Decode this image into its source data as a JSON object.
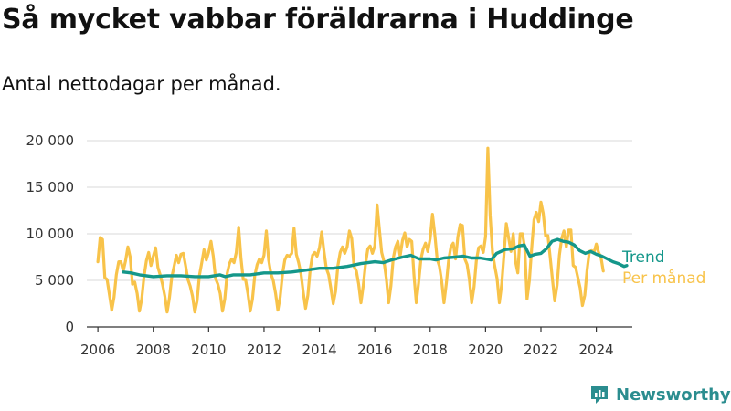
{
  "header": {
    "title": "Så mycket vabbar föräldrarna i Huddinge",
    "subtitle": "Antal nettodagar per månad."
  },
  "colors": {
    "monthly": "#f8c34a",
    "trend": "#14978a",
    "grid": "#d9d9d9",
    "axis": "#333333",
    "brand": "#2b8d8f"
  },
  "brand": {
    "name": "Newsworthy",
    "icon": "newsworthy-logo-icon"
  },
  "chart_data": {
    "type": "line",
    "title": "Så mycket vabbar föräldrarna i Huddinge",
    "subtitle": "Antal nettodagar per månad.",
    "xlabel": "",
    "ylabel": "",
    "xlim": [
      2005.6,
      2025.3
    ],
    "ylim": [
      0,
      20000
    ],
    "x_ticks": [
      2006,
      2008,
      2010,
      2012,
      2014,
      2016,
      2018,
      2020,
      2022,
      2024
    ],
    "y_ticks": [
      0,
      5000,
      10000,
      15000,
      20000
    ],
    "y_tick_labels": [
      "0",
      "5 000",
      "10 000",
      "15 000",
      "20 000"
    ],
    "grid": "horizontal",
    "legend": "direct labels at right end of lines",
    "series": [
      {
        "name": "Per månad",
        "color": "#f8c34a",
        "x_start": 2006.0,
        "x_step": 0.083333,
        "values": [
          7000,
          9600,
          9400,
          5300,
          5100,
          3500,
          1800,
          3200,
          5600,
          7000,
          7000,
          6000,
          7100,
          8600,
          7500,
          4600,
          4800,
          3600,
          1700,
          3000,
          5400,
          7100,
          8000,
          6600,
          7600,
          8500,
          6400,
          5600,
          4600,
          3300,
          1600,
          3100,
          5300,
          6500,
          7700,
          6900,
          7800,
          7900,
          6600,
          5100,
          4400,
          3300,
          1600,
          2800,
          5500,
          6900,
          8300,
          7200,
          8000,
          9200,
          7600,
          5200,
          4600,
          3600,
          1700,
          3000,
          5700,
          6800,
          7300,
          6900,
          8000,
          10700,
          7400,
          5100,
          5100,
          3600,
          1700,
          3000,
          5500,
          6700,
          7300,
          6900,
          7700,
          10300,
          7200,
          5700,
          5000,
          3600,
          1800,
          3200,
          5700,
          7200,
          7700,
          7600,
          7900,
          10600,
          7800,
          6900,
          5700,
          3700,
          2000,
          3400,
          6200,
          7700,
          8000,
          7600,
          8500,
          10200,
          8100,
          6300,
          5600,
          4100,
          2500,
          3800,
          6600,
          8000,
          8600,
          7900,
          8600,
          10300,
          9500,
          6500,
          6000,
          4600,
          2600,
          4400,
          6800,
          8400,
          8700,
          7900,
          8700,
          13100,
          10500,
          8000,
          7000,
          5200,
          2600,
          4400,
          7400,
          8600,
          9200,
          7600,
          9300,
          10100,
          8600,
          9400,
          9200,
          5500,
          2600,
          4700,
          7300,
          8400,
          9000,
          8100,
          9500,
          12100,
          10000,
          7300,
          6500,
          4900,
          2600,
          4700,
          7200,
          8600,
          9000,
          7300,
          9700,
          11000,
          10900,
          7300,
          6700,
          5100,
          2600,
          4300,
          7100,
          8500,
          8700,
          8000,
          9700,
          19200,
          12000,
          8000,
          6500,
          5200,
          2600,
          4600,
          7800,
          11100,
          9600,
          8100,
          10000,
          7000,
          5800,
          10000,
          10000,
          8500,
          3000,
          5000,
          8500,
          11500,
          12300,
          11300,
          13400,
          12200,
          9800,
          9800,
          7500,
          5100,
          2800,
          4500,
          7700,
          9500,
          10300,
          8600,
          10400,
          10400,
          6600,
          6400,
          5300,
          4200,
          2300,
          3400,
          6100,
          8100,
          8200,
          8000,
          8900,
          8000,
          7500,
          6000
        ]
      },
      {
        "name": "Trend",
        "color": "#14978a",
        "points": [
          [
            2006.92,
            5900
          ],
          [
            2007.2,
            5800
          ],
          [
            2007.5,
            5600
          ],
          [
            2008.0,
            5400
          ],
          [
            2008.5,
            5500
          ],
          [
            2009.0,
            5500
          ],
          [
            2009.5,
            5400
          ],
          [
            2010.0,
            5400
          ],
          [
            2010.4,
            5600
          ],
          [
            2010.6,
            5400
          ],
          [
            2010.9,
            5600
          ],
          [
            2011.5,
            5600
          ],
          [
            2012.0,
            5800
          ],
          [
            2012.5,
            5800
          ],
          [
            2013.0,
            5900
          ],
          [
            2013.5,
            6100
          ],
          [
            2014.0,
            6300
          ],
          [
            2014.5,
            6300
          ],
          [
            2015.0,
            6500
          ],
          [
            2015.5,
            6800
          ],
          [
            2016.0,
            7000
          ],
          [
            2016.3,
            6900
          ],
          [
            2016.6,
            7200
          ],
          [
            2017.0,
            7500
          ],
          [
            2017.3,
            7700
          ],
          [
            2017.6,
            7300
          ],
          [
            2018.0,
            7300
          ],
          [
            2018.2,
            7200
          ],
          [
            2018.5,
            7400
          ],
          [
            2018.9,
            7500
          ],
          [
            2019.2,
            7600
          ],
          [
            2019.5,
            7400
          ],
          [
            2019.8,
            7400
          ],
          [
            2020.0,
            7300
          ],
          [
            2020.2,
            7200
          ],
          [
            2020.4,
            7900
          ],
          [
            2020.7,
            8300
          ],
          [
            2021.0,
            8400
          ],
          [
            2021.2,
            8700
          ],
          [
            2021.4,
            8800
          ],
          [
            2021.6,
            7600
          ],
          [
            2021.8,
            7800
          ],
          [
            2022.0,
            7900
          ],
          [
            2022.2,
            8400
          ],
          [
            2022.4,
            9200
          ],
          [
            2022.6,
            9400
          ],
          [
            2022.8,
            9200
          ],
          [
            2023.0,
            9100
          ],
          [
            2023.2,
            8800
          ],
          [
            2023.4,
            8200
          ],
          [
            2023.6,
            7900
          ],
          [
            2023.8,
            8100
          ],
          [
            2024.0,
            7800
          ],
          [
            2024.2,
            7600
          ],
          [
            2024.4,
            7300
          ],
          [
            2024.6,
            7000
          ],
          [
            2024.8,
            6800
          ],
          [
            2025.0,
            6500
          ],
          [
            2025.1,
            6600
          ]
        ]
      }
    ]
  }
}
